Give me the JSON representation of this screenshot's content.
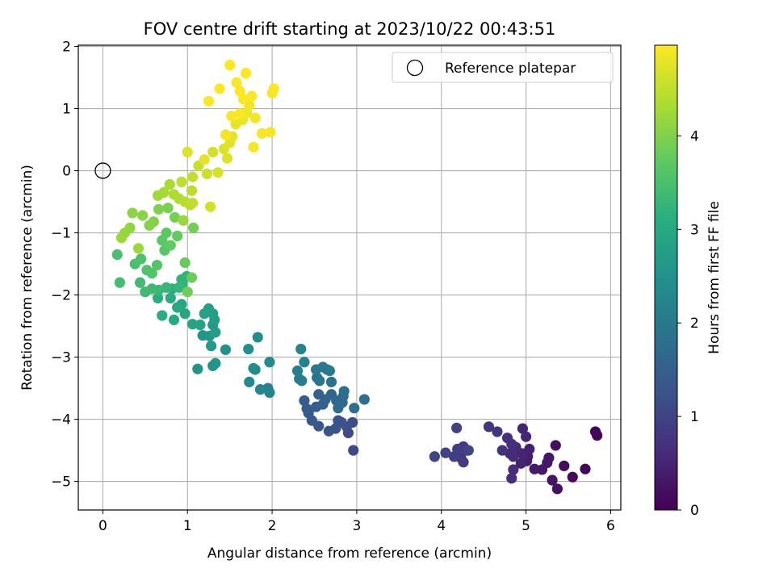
{
  "chart_data": {
    "type": "scatter",
    "title": "FOV centre drift starting at 2023/10/22 00:43:51",
    "xlabel": "Angular distance from reference (arcmin)",
    "ylabel": "Rotation from reference (arcmin)",
    "xlim": [
      -0.29,
      6.12
    ],
    "ylim": [
      -5.46,
      2.02
    ],
    "xticks": [
      "0",
      "1",
      "2",
      "3",
      "4",
      "5",
      "6"
    ],
    "yticks": [
      "−5",
      "−4",
      "−3",
      "−2",
      "−1",
      "0",
      "1",
      "2"
    ],
    "grid": true,
    "legend": {
      "placement": "top-right",
      "entries": [
        "Reference platepar"
      ]
    },
    "reference_point": {
      "x": 0,
      "y": 0
    },
    "colorbar": {
      "label": "Hours from first FF file",
      "range": [
        0,
        4.97
      ],
      "ticks": [
        "0",
        "1",
        "2",
        "3",
        "4"
      ],
      "colormap": "viridis"
    },
    "series": [
      {
        "color_by": "hours",
        "points": [
          [
            5.82,
            -4.2,
            0.05
          ],
          [
            5.84,
            -4.26,
            0.07
          ],
          [
            5.7,
            -4.8,
            0.1
          ],
          [
            5.55,
            -4.93,
            0.13
          ],
          [
            5.45,
            -4.75,
            0.16
          ],
          [
            5.35,
            -4.42,
            0.19
          ],
          [
            5.37,
            -5.12,
            0.22
          ],
          [
            5.31,
            -4.98,
            0.25
          ],
          [
            5.25,
            -4.7,
            0.28
          ],
          [
            5.27,
            -4.62,
            0.3
          ],
          [
            5.19,
            -4.81,
            0.33
          ],
          [
            5.1,
            -4.8,
            0.36
          ],
          [
            5.02,
            -4.6,
            0.38
          ],
          [
            5.01,
            -4.67,
            0.4
          ],
          [
            5.04,
            -4.48,
            0.42
          ],
          [
            4.97,
            -4.57,
            0.45
          ],
          [
            4.94,
            -4.71,
            0.47
          ],
          [
            4.95,
            -4.55,
            0.49
          ],
          [
            4.96,
            -4.15,
            0.51
          ],
          [
            5.0,
            -4.28,
            0.53
          ],
          [
            4.88,
            -4.45,
            0.56
          ],
          [
            4.85,
            -4.6,
            0.58
          ],
          [
            4.81,
            -4.55,
            0.6
          ],
          [
            4.85,
            -4.81,
            0.62
          ],
          [
            4.83,
            -4.95,
            0.64
          ],
          [
            4.83,
            -4.4,
            0.66
          ],
          [
            4.78,
            -4.3,
            0.68
          ],
          [
            4.72,
            -4.5,
            0.7
          ],
          [
            4.66,
            -4.2,
            0.72
          ],
          [
            4.56,
            -4.12,
            0.74
          ],
          [
            4.3,
            -4.5,
            0.77
          ],
          [
            4.26,
            -4.44,
            0.8
          ],
          [
            4.23,
            -4.62,
            0.83
          ],
          [
            4.26,
            -4.69,
            0.86
          ],
          [
            4.19,
            -4.48,
            0.89
          ],
          [
            4.15,
            -4.6,
            0.92
          ],
          [
            4.18,
            -4.14,
            0.95
          ],
          [
            4.05,
            -4.54,
            0.98
          ],
          [
            3.92,
            -4.6,
            1.01
          ],
          [
            4.32,
            -4.5,
            1.04
          ],
          [
            2.96,
            -4.5,
            1.1
          ],
          [
            2.9,
            -4.22,
            1.13
          ],
          [
            2.95,
            -4.05,
            1.16
          ],
          [
            2.88,
            -4.12,
            1.19
          ],
          [
            2.82,
            -4.05,
            1.22
          ],
          [
            2.75,
            -4.15,
            1.25
          ],
          [
            2.78,
            -4.02,
            1.28
          ],
          [
            2.67,
            -4.19,
            1.31
          ],
          [
            2.55,
            -4.11,
            1.34
          ],
          [
            2.47,
            -4.02,
            1.37
          ],
          [
            2.43,
            -3.9,
            1.4
          ],
          [
            2.41,
            -3.83,
            1.43
          ],
          [
            2.38,
            -3.7,
            1.46
          ],
          [
            2.52,
            -3.8,
            1.49
          ],
          [
            2.6,
            -3.76,
            1.52
          ],
          [
            2.55,
            -3.6,
            1.55
          ],
          [
            2.63,
            -3.68,
            1.58
          ],
          [
            2.7,
            -3.6,
            1.61
          ],
          [
            2.76,
            -3.7,
            1.64
          ],
          [
            2.83,
            -3.73,
            1.67
          ],
          [
            2.84,
            -3.63,
            1.7
          ],
          [
            2.78,
            -3.82,
            1.73
          ],
          [
            2.97,
            -3.82,
            1.76
          ],
          [
            3.09,
            -3.68,
            1.79
          ],
          [
            2.85,
            -3.55,
            1.82
          ],
          [
            2.7,
            -3.4,
            1.85
          ],
          [
            2.65,
            -3.2,
            1.88
          ],
          [
            2.53,
            -3.33,
            1.91
          ],
          [
            2.56,
            -3.38,
            1.94
          ],
          [
            2.52,
            -3.2,
            1.97
          ],
          [
            2.6,
            -3.16,
            2.0
          ],
          [
            2.68,
            -3.22,
            2.03
          ],
          [
            2.35,
            -3.38,
            2.06
          ],
          [
            2.32,
            -3.35,
            2.09
          ],
          [
            2.3,
            -3.22,
            2.12
          ],
          [
            2.38,
            -3.08,
            2.15
          ],
          [
            2.34,
            -2.87,
            2.18
          ],
          [
            1.95,
            -3.5,
            2.21
          ],
          [
            1.97,
            -3.57,
            2.24
          ],
          [
            1.86,
            -3.52,
            2.27
          ],
          [
            1.73,
            -3.4,
            2.3
          ],
          [
            1.8,
            -3.2,
            2.33
          ],
          [
            1.97,
            -3.08,
            2.36
          ],
          [
            1.78,
            -3.18,
            2.39
          ],
          [
            1.83,
            -2.68,
            2.42
          ],
          [
            1.72,
            -2.87,
            2.45
          ],
          [
            1.45,
            -2.88,
            2.48
          ],
          [
            1.3,
            -3.14,
            2.51
          ],
          [
            1.33,
            -3.1,
            2.54
          ],
          [
            1.12,
            -3.19,
            2.57
          ],
          [
            1.18,
            -2.65,
            2.6
          ],
          [
            1.26,
            -2.66,
            2.63
          ],
          [
            1.3,
            -2.48,
            2.66
          ],
          [
            1.28,
            -2.82,
            2.69
          ],
          [
            1.33,
            -2.6,
            2.72
          ],
          [
            1.32,
            -2.4,
            2.75
          ],
          [
            1.3,
            -2.3,
            2.78
          ],
          [
            1.25,
            -2.22,
            2.81
          ],
          [
            1.2,
            -2.3,
            2.84
          ],
          [
            1.15,
            -2.48,
            2.87
          ],
          [
            1.06,
            -2.47,
            2.9
          ],
          [
            0.97,
            -2.3,
            2.93
          ],
          [
            0.93,
            -2.15,
            2.96
          ],
          [
            0.88,
            -2.2,
            2.99
          ],
          [
            0.84,
            -2.4,
            3.02
          ],
          [
            0.8,
            -2.05,
            3.05
          ],
          [
            0.7,
            -2.33,
            3.08
          ],
          [
            0.65,
            -2.05,
            3.11
          ],
          [
            0.82,
            -1.9,
            3.14
          ],
          [
            0.94,
            -1.82,
            3.17
          ],
          [
            0.99,
            -1.7,
            3.2
          ],
          [
            0.93,
            -1.75,
            3.23
          ],
          [
            0.9,
            -1.88,
            3.26
          ],
          [
            0.75,
            -1.88,
            3.29
          ],
          [
            0.66,
            -1.92,
            3.32
          ],
          [
            0.58,
            -1.9,
            3.35
          ],
          [
            0.5,
            -1.95,
            3.38
          ],
          [
            0.44,
            -1.8,
            3.41
          ],
          [
            0.2,
            -1.8,
            3.44
          ],
          [
            0.17,
            -1.35,
            3.47
          ],
          [
            0.38,
            -1.5,
            3.5
          ],
          [
            0.45,
            -1.42,
            3.53
          ],
          [
            0.52,
            -1.6,
            3.56
          ],
          [
            0.58,
            -1.65,
            3.59
          ],
          [
            0.64,
            -1.52,
            3.62
          ],
          [
            0.73,
            -1.28,
            3.65
          ],
          [
            0.7,
            -1.12,
            3.68
          ],
          [
            0.75,
            -1.0,
            3.71
          ],
          [
            0.8,
            -1.2,
            3.74
          ],
          [
            0.88,
            -1.05,
            3.77
          ],
          [
            0.97,
            -1.48,
            3.8
          ],
          [
            1.05,
            -1.72,
            3.83
          ],
          [
            1.0,
            -1.95,
            3.86
          ],
          [
            1.07,
            -0.92,
            3.89
          ],
          [
            0.85,
            -0.75,
            3.92
          ],
          [
            0.77,
            -0.6,
            3.95
          ],
          [
            0.66,
            -0.62,
            3.98
          ],
          [
            0.6,
            -0.82,
            4.01
          ],
          [
            0.55,
            -0.88,
            4.04
          ],
          [
            0.47,
            -0.72,
            4.07
          ],
          [
            0.35,
            -0.68,
            4.1
          ],
          [
            0.32,
            -0.92,
            4.13
          ],
          [
            0.26,
            -1.0,
            4.16
          ],
          [
            0.22,
            -1.08,
            4.19
          ],
          [
            0.42,
            -1.25,
            4.22
          ],
          [
            0.65,
            -0.4,
            4.25
          ],
          [
            0.72,
            -0.35,
            4.28
          ],
          [
            0.79,
            -0.22,
            4.31
          ],
          [
            0.84,
            -0.38,
            4.34
          ],
          [
            0.9,
            -0.45,
            4.37
          ],
          [
            0.97,
            -0.5,
            4.4
          ],
          [
            1.03,
            -0.55,
            4.43
          ],
          [
            1.05,
            -0.32,
            4.46
          ],
          [
            0.93,
            -0.18,
            4.49
          ],
          [
            1.06,
            -0.1,
            4.52
          ],
          [
            1.13,
            0.08,
            4.55
          ],
          [
            1.23,
            -0.05,
            4.58
          ],
          [
            1.27,
            -0.58,
            4.61
          ],
          [
            1.3,
            0.3,
            4.64
          ],
          [
            1.36,
            -0.03,
            4.67
          ],
          [
            1.43,
            0.35,
            4.7
          ],
          [
            1.47,
            0.2,
            4.73
          ],
          [
            1.5,
            0.45,
            4.76
          ],
          [
            1.53,
            0.55,
            4.79
          ],
          [
            1.57,
            0.75,
            4.81
          ],
          [
            1.65,
            0.82,
            4.83
          ],
          [
            1.7,
            0.93,
            4.85
          ],
          [
            1.73,
            1.05,
            4.87
          ],
          [
            1.8,
            0.85,
            4.89
          ],
          [
            1.78,
            0.38,
            4.91
          ],
          [
            1.88,
            0.6,
            4.92
          ],
          [
            1.98,
            0.62,
            4.93
          ],
          [
            2.0,
            1.25,
            4.94
          ],
          [
            2.02,
            1.32,
            4.95
          ],
          [
            1.76,
            1.2,
            4.95
          ],
          [
            1.66,
            1.15,
            4.96
          ],
          [
            1.58,
            1.42,
            4.96
          ],
          [
            1.62,
            1.28,
            4.96
          ],
          [
            1.5,
            1.7,
            4.97
          ],
          [
            1.69,
            1.57,
            4.97
          ],
          [
            1.38,
            1.32,
            4.97
          ],
          [
            1.25,
            1.12,
            4.97
          ],
          [
            1.62,
            0.92,
            4.96
          ],
          [
            1.52,
            0.88,
            4.94
          ],
          [
            1.45,
            0.58,
            4.9
          ],
          [
            1.2,
            0.18,
            4.8
          ],
          [
            1.0,
            0.3,
            4.7
          ],
          [
            1.06,
            -0.52,
            4.5
          ],
          [
            0.95,
            -0.8,
            4.2
          ]
        ]
      }
    ]
  }
}
